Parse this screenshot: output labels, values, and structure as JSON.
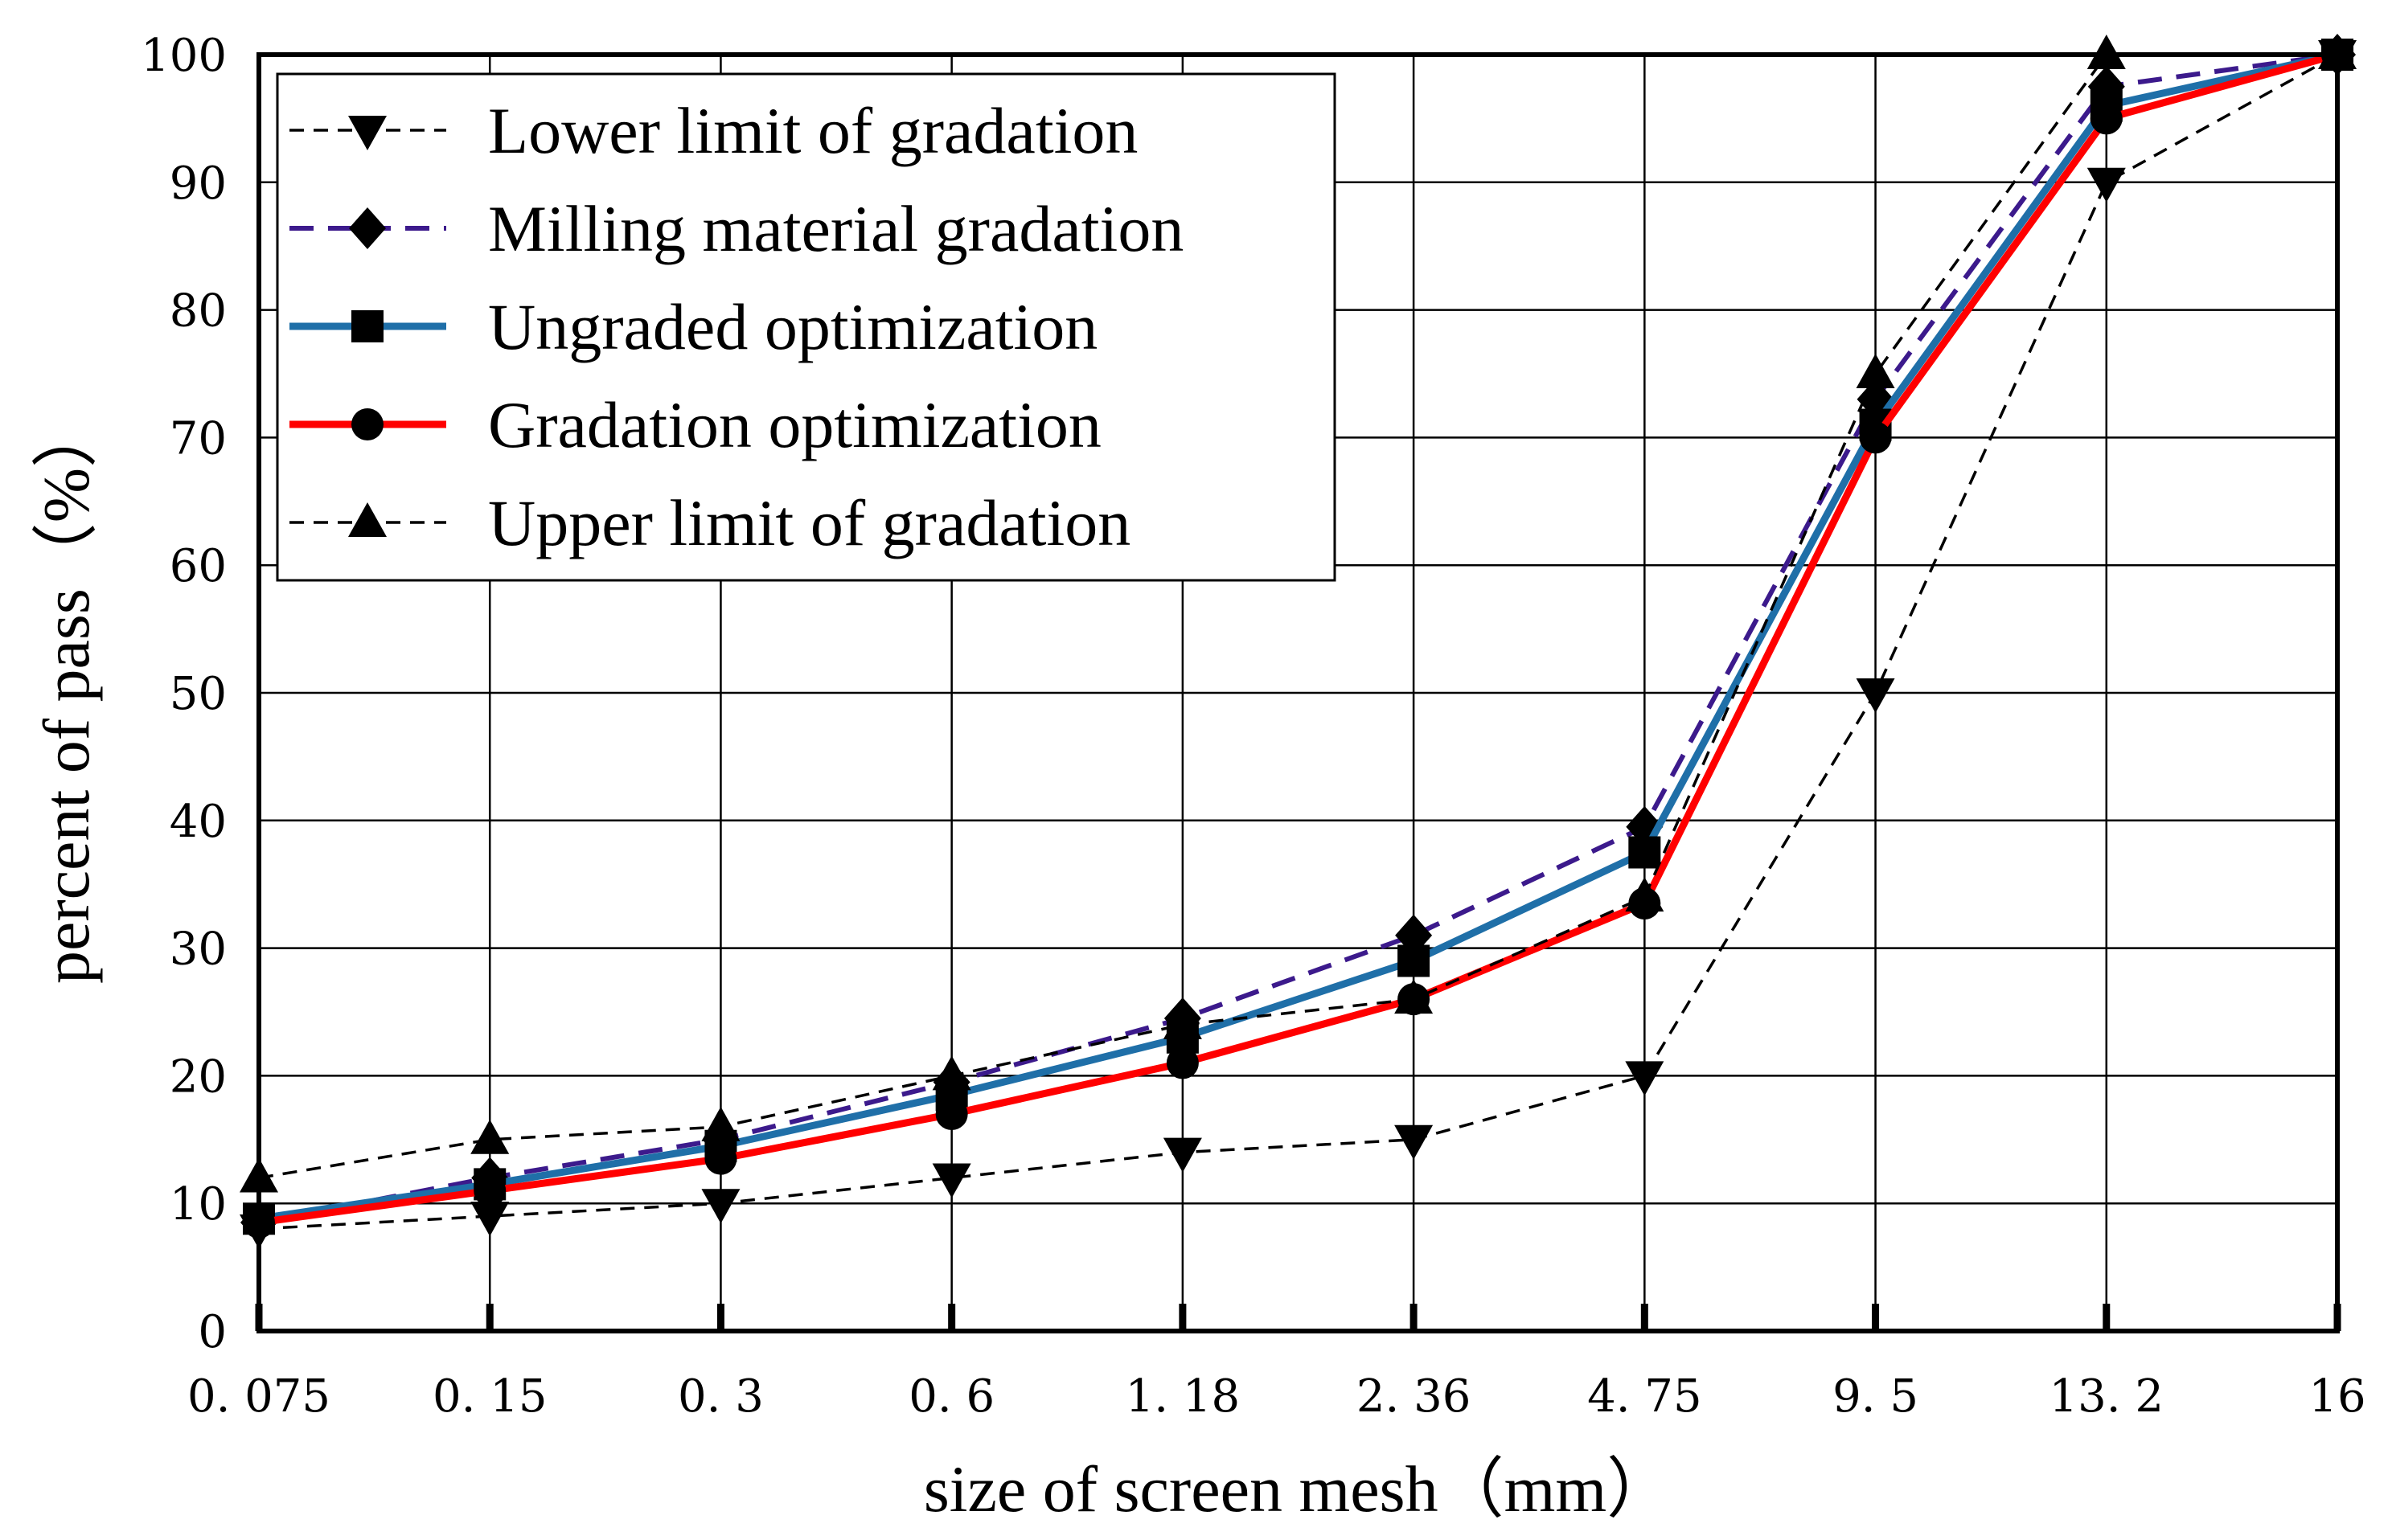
{
  "chart_data": {
    "type": "line",
    "xlabel": "size of screen mesh（mm）",
    "ylabel": "percent of pass（%）",
    "ylim": [
      0,
      100
    ],
    "yticks": [
      "0",
      "10",
      "20",
      "30",
      "40",
      "50",
      "60",
      "70",
      "80",
      "90",
      "100"
    ],
    "categories": [
      "0.075",
      "0.15",
      "0.3",
      "0.6",
      "1.18",
      "2.36",
      "4.75",
      "9.5",
      "13.2",
      "16"
    ],
    "category_labels": [
      "0. 075",
      "0. 15",
      "0. 3",
      "0. 6",
      "1. 18",
      "2. 36",
      "4. 75",
      "9. 5",
      "13. 2",
      "16"
    ],
    "grid": true,
    "legend_position": "top-left",
    "series": [
      {
        "name": "Lower limit of gradation",
        "marker": "triangle-down",
        "line": "dashed",
        "color": "#000000",
        "values": [
          8,
          9,
          10,
          12,
          14,
          15,
          20,
          50,
          90,
          100
        ]
      },
      {
        "name": "Milling material gradation",
        "marker": "diamond",
        "line": "dashed",
        "color": "#3c1a8c",
        "values": [
          8.5,
          12,
          15,
          19.5,
          24.5,
          31,
          39.5,
          73,
          97.5,
          100
        ]
      },
      {
        "name": "Ungraded optimization",
        "marker": "square",
        "line": "solid",
        "color": "#1f6fa8",
        "values": [
          8.8,
          11.5,
          14.5,
          18.5,
          23,
          29,
          37.5,
          71,
          96,
          100
        ]
      },
      {
        "name": "Gradation optimization",
        "marker": "circle",
        "line": "solid",
        "color": "#ff0000",
        "values": [
          8.5,
          11,
          13.5,
          17,
          21,
          26,
          33.5,
          70,
          95,
          100
        ]
      },
      {
        "name": "Upper limit of gradation",
        "marker": "triangle-up",
        "line": "dashed",
        "color": "#000000",
        "values": [
          12,
          15,
          16,
          20,
          24,
          26,
          34,
          75,
          100,
          100
        ]
      }
    ]
  }
}
